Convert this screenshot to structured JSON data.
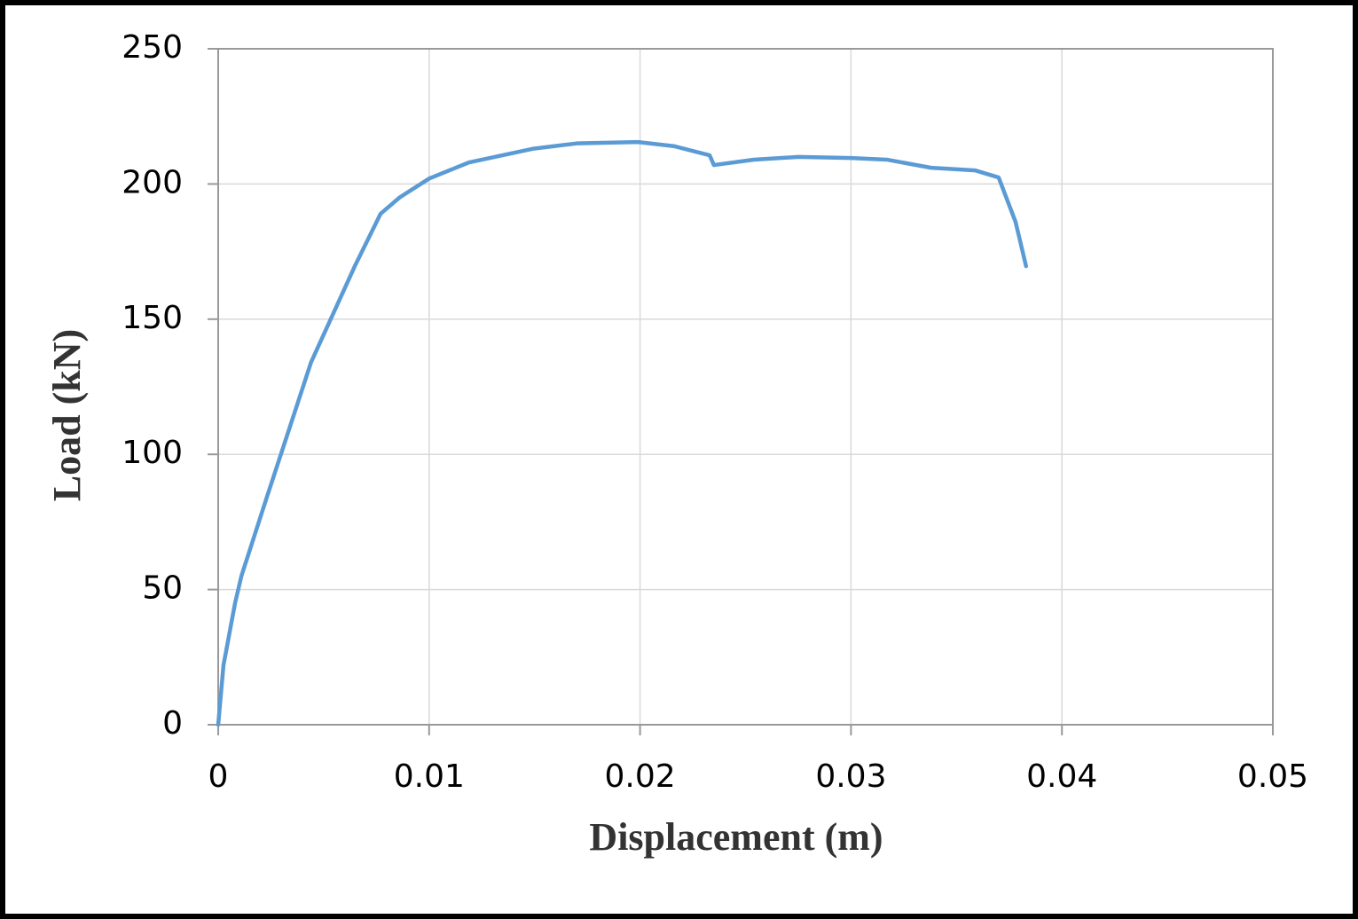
{
  "chart_data": {
    "type": "line",
    "x_label": "Displacement (m)",
    "y_label": "Load (kN)",
    "x": [
      0,
      0.00025,
      0.0008,
      0.0011,
      0.0023,
      0.0044,
      0.0065,
      0.0077,
      0.0086,
      0.01,
      0.0119,
      0.0149,
      0.017,
      0.0199,
      0.0216,
      0.0233,
      0.0235,
      0.0254,
      0.0275,
      0.03,
      0.0317,
      0.0338,
      0.0359,
      0.037,
      0.0378,
      0.038,
      0.0383
    ],
    "values": [
      0,
      22,
      45,
      55,
      84,
      134,
      170,
      189,
      195,
      202,
      208,
      213,
      215,
      215.5,
      214,
      210.6,
      207,
      209,
      210,
      209.6,
      209,
      206,
      205,
      202.4,
      186,
      179.5,
      169.6
    ],
    "color": "#5b9bd5",
    "xlim": [
      0,
      0.05
    ],
    "xticks": [
      0,
      0.01,
      0.02,
      0.03,
      0.04,
      0.05
    ],
    "ylim": [
      0,
      250
    ],
    "yticks": [
      0,
      50,
      100,
      150,
      200,
      250
    ],
    "grid": true
  }
}
